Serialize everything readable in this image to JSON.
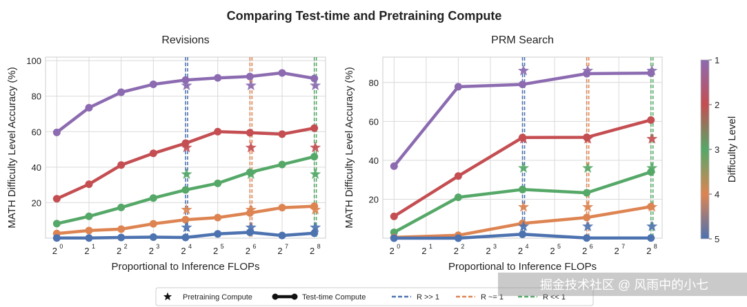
{
  "figure_title": "Comparing Test-time and Pretraining Compute",
  "colors": {
    "1": "#8c6bb1",
    "2": "#c44e52",
    "3": "#55a868",
    "4": "#dd8452",
    "5": "#4c72b0",
    "grid": "#d9d9d9",
    "frame": "#cccccc"
  },
  "colorbar": {
    "label": "Difficulty Level",
    "ticks": [
      "1",
      "2",
      "3",
      "4",
      "5"
    ],
    "gradient": [
      "#8c6bb1",
      "#c44e52",
      "#55a868",
      "#dd8452",
      "#4c72b0"
    ]
  },
  "legend": {
    "items": [
      {
        "label": "Pretraining Compute",
        "kind": "star"
      },
      {
        "label": "Test-time Compute",
        "kind": "line"
      },
      {
        "label": "R >> 1",
        "kind": "dash",
        "color": "#4c72b0"
      },
      {
        "label": "R ~= 1",
        "kind": "dash",
        "color": "#dd8452"
      },
      {
        "label": "R << 1",
        "kind": "dash",
        "color": "#55a868"
      }
    ]
  },
  "watermark": "掘金技术社区 @ 风雨中的小七",
  "chart_data": [
    {
      "type": "line",
      "title": "Revisions",
      "xlabel": "Proportional to Inference FLOPs",
      "ylabel": "MATH Difficulty Level Accuracy (%)",
      "x_tick_base": "2",
      "x_exponents": [
        0,
        1,
        2,
        3,
        4,
        5,
        6,
        7,
        8
      ],
      "ylim": [
        0,
        102
      ],
      "yticks": [
        20,
        40,
        60,
        80,
        100
      ],
      "grid": true,
      "vlines": [
        {
          "x": 4,
          "style": "R >> 1",
          "color": "#4c72b0"
        },
        {
          "x": 6,
          "style": "R ~= 1",
          "color": "#dd8452"
        },
        {
          "x": 8,
          "style": "R << 1",
          "color": "#55a868"
        }
      ],
      "series": [
        {
          "level": "1",
          "x": [
            0,
            1,
            2,
            3,
            4,
            5,
            6,
            7,
            8
          ],
          "values": [
            59.6,
            73.5,
            82.2,
            86.7,
            89.1,
            90.3,
            91.1,
            93.1,
            90.0
          ]
        },
        {
          "level": "2",
          "x": [
            0,
            1,
            2,
            3,
            4,
            5,
            6,
            7,
            8
          ],
          "values": [
            22.2,
            30.4,
            41.2,
            47.8,
            53.5,
            60.0,
            59.4,
            58.6,
            62.0
          ]
        },
        {
          "level": "3",
          "x": [
            0,
            1,
            2,
            3,
            4,
            5,
            6,
            7,
            8
          ],
          "values": [
            8.2,
            12.3,
            17.3,
            22.6,
            27.2,
            30.9,
            37.1,
            41.5,
            45.9
          ]
        },
        {
          "level": "4",
          "x": [
            0,
            1,
            2,
            3,
            4,
            5,
            6,
            7,
            8
          ],
          "values": [
            2.6,
            4.3,
            5.1,
            8.1,
            10.4,
            11.6,
            14.2,
            17.2,
            18.0
          ]
        },
        {
          "level": "5",
          "x": [
            0,
            1,
            2,
            3,
            4,
            5,
            6,
            7,
            8
          ],
          "values": [
            0.1,
            0.1,
            0.4,
            0.6,
            0.4,
            2.4,
            3.3,
            1.5,
            2.8
          ]
        }
      ],
      "pretraining": [
        {
          "level": "1",
          "x": [
            4,
            6,
            8
          ],
          "values": [
            86,
            86,
            86
          ]
        },
        {
          "level": "2",
          "x": [
            4,
            6,
            8
          ],
          "values": [
            51,
            51,
            51
          ]
        },
        {
          "level": "3",
          "x": [
            4,
            6,
            8
          ],
          "values": [
            36,
            36,
            36
          ]
        },
        {
          "level": "4",
          "x": [
            4,
            6,
            8
          ],
          "values": [
            16,
            16,
            16
          ]
        },
        {
          "level": "5",
          "x": [
            4,
            6,
            8
          ],
          "values": [
            6,
            6,
            6
          ]
        }
      ]
    },
    {
      "type": "line",
      "title": "PRM Search",
      "xlabel": "Proportional to Inference FLOPs",
      "ylabel": "MATH Difficulty Level Accuracy (%)",
      "x_tick_base": "2",
      "x_exponents": [
        0,
        1,
        2,
        3,
        4,
        5,
        6,
        7,
        8
      ],
      "ylim": [
        0,
        93
      ],
      "yticks": [
        20,
        40,
        60,
        80
      ],
      "grid": true,
      "vlines": [
        {
          "x": 4,
          "style": "R >> 1",
          "color": "#4c72b0"
        },
        {
          "x": 6,
          "style": "R ~= 1",
          "color": "#dd8452"
        },
        {
          "x": 8,
          "style": "R << 1",
          "color": "#55a868"
        }
      ],
      "series": [
        {
          "level": "1",
          "x": [
            0,
            2,
            4,
            6,
            8
          ],
          "values": [
            37.0,
            77.8,
            79.0,
            84.5,
            84.8
          ]
        },
        {
          "level": "2",
          "x": [
            0,
            2,
            4,
            6,
            8
          ],
          "values": [
            11.2,
            31.9,
            51.7,
            51.8,
            60.7
          ]
        },
        {
          "level": "3",
          "x": [
            0,
            2,
            4,
            6,
            8
          ],
          "values": [
            3.0,
            21.0,
            25.0,
            23.3,
            34.0
          ]
        },
        {
          "level": "4",
          "x": [
            0,
            2,
            4,
            6,
            8
          ],
          "values": [
            0.4,
            1.5,
            7.6,
            10.6,
            16.2
          ]
        },
        {
          "level": "5",
          "x": [
            0,
            2,
            4,
            6,
            8
          ],
          "values": [
            0.0,
            0.0,
            2.0,
            0.1,
            0.1
          ]
        }
      ],
      "pretraining": [
        {
          "level": "1",
          "x": [
            4,
            6,
            8
          ],
          "values": [
            86,
            86,
            86
          ]
        },
        {
          "level": "2",
          "x": [
            4,
            6,
            8
          ],
          "values": [
            51,
            51,
            51
          ]
        },
        {
          "level": "3",
          "x": [
            4,
            6,
            8
          ],
          "values": [
            36,
            36,
            36
          ]
        },
        {
          "level": "4",
          "x": [
            4,
            6,
            8
          ],
          "values": [
            16,
            16,
            16
          ]
        },
        {
          "level": "5",
          "x": [
            4,
            6,
            8
          ],
          "values": [
            6,
            6,
            6
          ]
        }
      ]
    }
  ]
}
